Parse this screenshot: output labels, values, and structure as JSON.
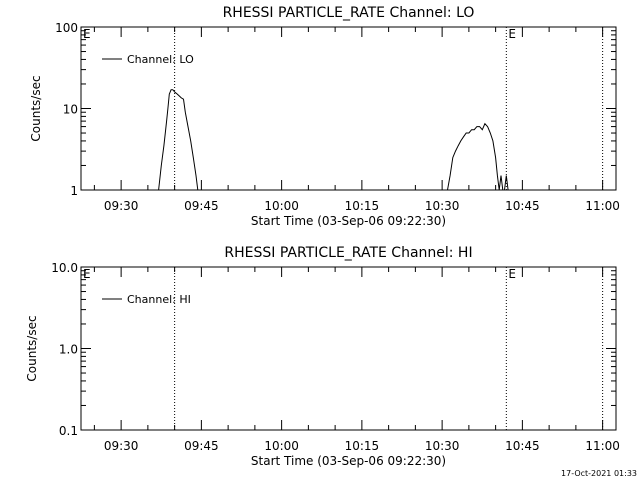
{
  "timestamp": "17-Oct-2021 01:33",
  "chart_data": [
    {
      "type": "line",
      "title": "RHESSI PARTICLE_RATE Channel: LO",
      "xlabel": "Start Time (03-Sep-06 09:22:30)",
      "ylabel": "Counts/sec",
      "yscale": "log",
      "ylim": [
        1,
        100
      ],
      "xlim": [
        "09:22:30",
        "11:02:30"
      ],
      "grid": false,
      "legend_position": "top-left",
      "x_tick_labels": [
        "09:30",
        "09:45",
        "10:00",
        "10:15",
        "10:30",
        "10:45",
        "11:00"
      ],
      "y_tick_labels": [
        "1",
        "10",
        "100"
      ],
      "markers": [
        {
          "time": "09:22:30",
          "label": "E"
        },
        {
          "time": "09:40:00",
          "label": ""
        },
        {
          "time": "10:42:00",
          "label": "E"
        },
        {
          "time": "11:00:00",
          "label": ""
        }
      ],
      "series": [
        {
          "name": "Channel: LO",
          "x": [
            "09:37:00",
            "09:37:30",
            "09:38:00",
            "09:38:30",
            "09:38:45",
            "09:39:00",
            "09:39:20",
            "09:39:40",
            "09:40:00",
            "09:40:30",
            "09:41:00",
            "09:41:15",
            "09:41:40",
            "09:42:00",
            "09:42:30",
            "09:43:00",
            "09:43:30",
            "09:44:00",
            "09:44:20",
            "10:31:00",
            "10:31:30",
            "10:32:00",
            "10:32:30",
            "10:33:00",
            "10:33:30",
            "10:34:00",
            "10:34:30",
            "10:35:00",
            "10:35:30",
            "10:36:00",
            "10:36:30",
            "10:37:00",
            "10:37:30",
            "10:38:00",
            "10:38:30",
            "10:39:00",
            "10:39:30",
            "10:40:00",
            "10:40:20",
            "10:40:40",
            "10:41:00",
            "10:41:20",
            "10:41:40",
            "10:42:00",
            "10:42:20"
          ],
          "y": [
            1,
            2,
            3.5,
            7,
            10,
            15,
            17,
            17,
            16,
            15,
            14,
            13.5,
            13,
            9,
            6,
            4,
            2.5,
            1.5,
            1,
            1,
            1.5,
            2.5,
            3,
            3.5,
            4,
            4.5,
            5,
            5,
            5.5,
            5.5,
            6,
            6,
            5.5,
            6.5,
            6,
            5,
            4,
            2.5,
            1.5,
            1,
            1.5,
            1,
            1,
            1.5,
            1
          ]
        }
      ]
    },
    {
      "type": "line",
      "title": "RHESSI PARTICLE_RATE Channel: HI",
      "xlabel": "Start Time (03-Sep-06 09:22:30)",
      "ylabel": "Counts/sec",
      "yscale": "log",
      "ylim": [
        0.1,
        10
      ],
      "xlim": [
        "09:22:30",
        "11:02:30"
      ],
      "grid": false,
      "legend_position": "top-left",
      "x_tick_labels": [
        "09:30",
        "09:45",
        "10:00",
        "10:15",
        "10:30",
        "10:45",
        "11:00"
      ],
      "y_tick_labels": [
        "0.1",
        "1.0",
        "10.0"
      ],
      "markers": [
        {
          "time": "09:22:30",
          "label": "E"
        },
        {
          "time": "09:40:00",
          "label": ""
        },
        {
          "time": "10:42:00",
          "label": "E"
        },
        {
          "time": "11:00:00",
          "label": ""
        }
      ],
      "series": [
        {
          "name": "Channel: HI",
          "x": [],
          "y": []
        }
      ]
    }
  ]
}
